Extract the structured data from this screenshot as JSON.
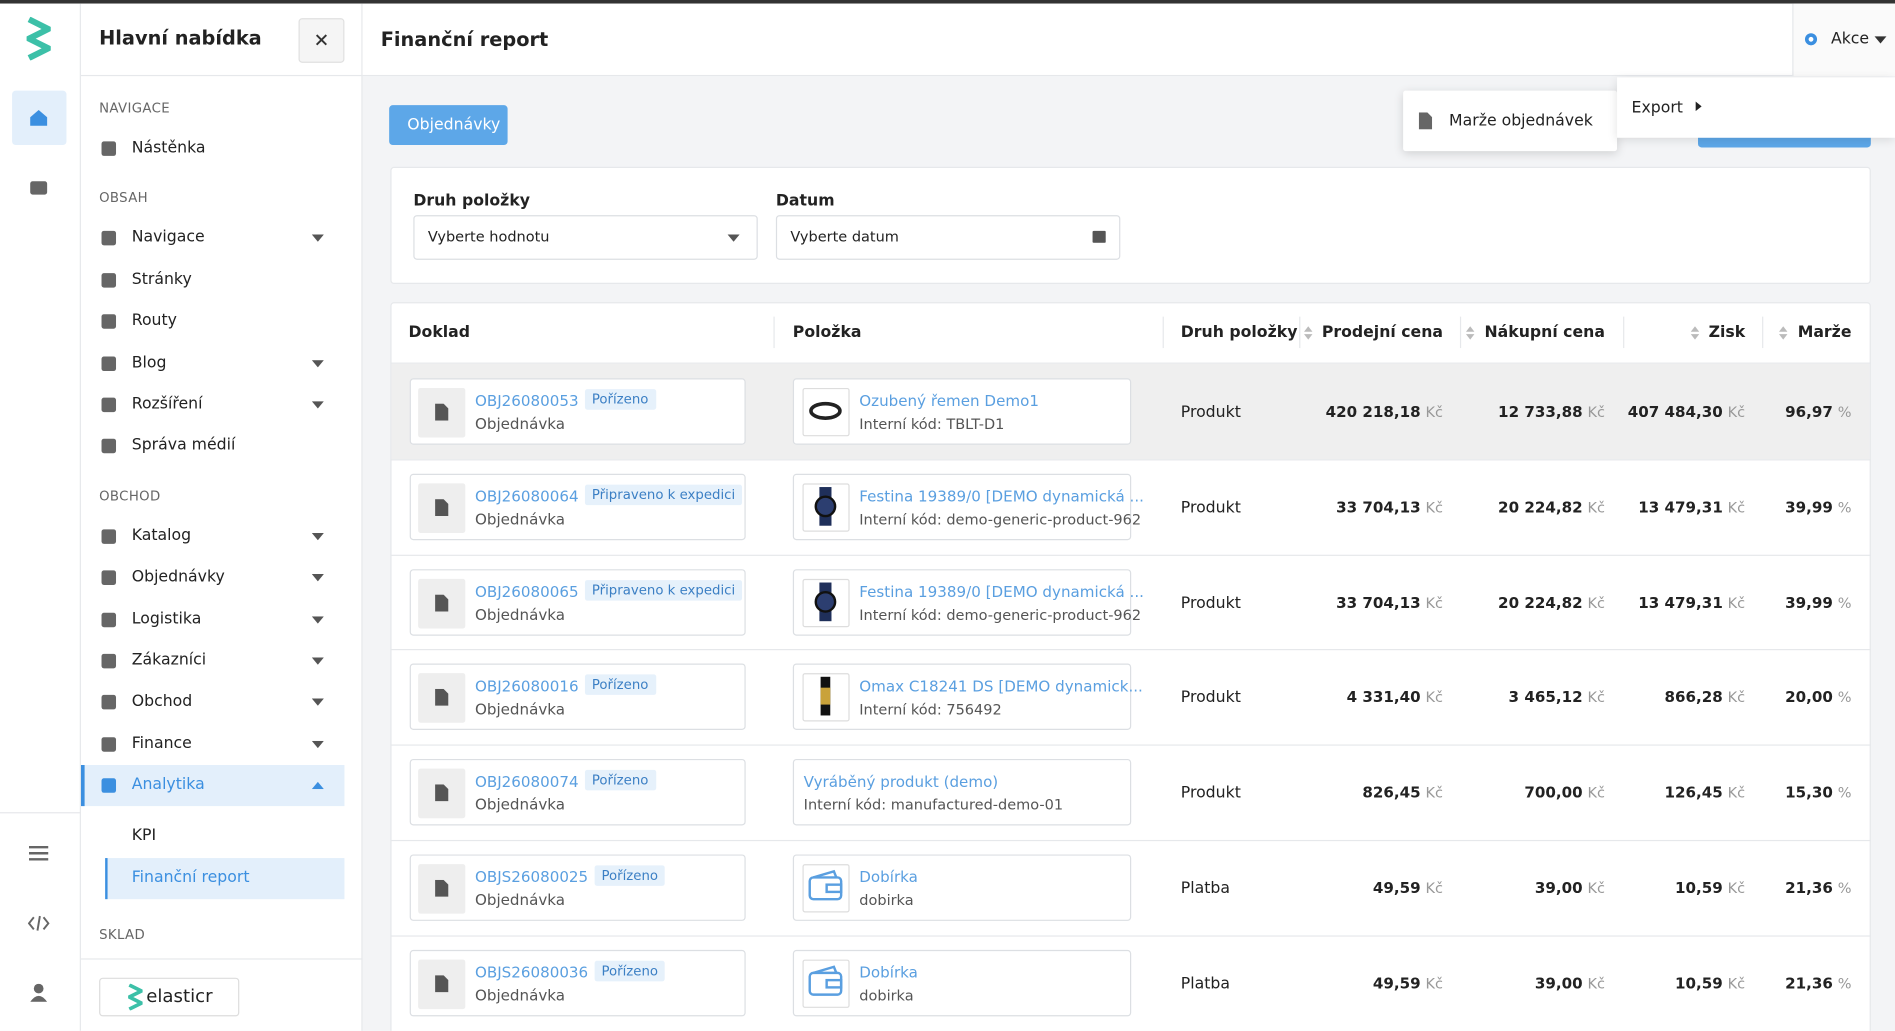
{
  "sidebar": {
    "title": "Hlavní nabídka",
    "sections": [
      {
        "label": "NAVIGACE",
        "items": [
          {
            "label": "Nástěnka"
          }
        ]
      },
      {
        "label": "OBSAH",
        "items": [
          {
            "label": "Navigace",
            "expand": true
          },
          {
            "label": "Stránky"
          },
          {
            "label": "Routy"
          },
          {
            "label": "Blog",
            "expand": true
          },
          {
            "label": "Rozšíření",
            "expand": true
          },
          {
            "label": "Správa médií"
          }
        ]
      },
      {
        "label": "OBCHOD",
        "items": [
          {
            "label": "Katalog",
            "expand": true
          },
          {
            "label": "Objednávky",
            "expand": true
          },
          {
            "label": "Logistika",
            "expand": true
          },
          {
            "label": "Zákazníci",
            "expand": true
          },
          {
            "label": "Obchod",
            "expand": true
          },
          {
            "label": "Finance",
            "expand": true
          },
          {
            "label": "Analytika",
            "expand": true,
            "active": true,
            "children": [
              {
                "label": "KPI"
              },
              {
                "label": "Finanční report",
                "active": true
              }
            ]
          }
        ]
      },
      {
        "label": "SKLAD",
        "items": []
      }
    ],
    "logo": "elasticr"
  },
  "header": {
    "title": "Finanční report",
    "action": "Akce"
  },
  "menu": {
    "item": "Marže objednávek",
    "submenu": "Export"
  },
  "tab": "Objednávky",
  "filters": [
    {
      "label": "Druh položky",
      "placeholder": "Vyberte hodnotu"
    },
    {
      "label": "Datum",
      "placeholder": "Vyberte datum"
    }
  ],
  "table": {
    "columns": [
      "Doklad",
      "Položka",
      "Druh položky",
      "Prodejní cena",
      "Nákupní cena",
      "Zisk",
      "Marže"
    ],
    "currency": "Kč",
    "percent": "%",
    "rows": [
      {
        "doc": "OBJ26080053",
        "status": "Pořízeno",
        "doc_type": "Objednávka",
        "item": "Ozubený řemen Demo1",
        "code": "Interní kód: TBLT-D1",
        "thumb": "belt",
        "kind": "Produkt",
        "sale": "420 218,18",
        "cost": "12 733,88",
        "profit": "407 484,30",
        "margin": "96,97"
      },
      {
        "doc": "OBJ26080064",
        "status": "Připraveno k expedici",
        "doc_type": "Objednávka",
        "item": "Festina 19389/0 [DEMO dynamická ...",
        "code": "Interní kód: demo-generic-product-962",
        "thumb": "watch",
        "kind": "Produkt",
        "sale": "33 704,13",
        "cost": "20 224,82",
        "profit": "13 479,31",
        "margin": "39,99"
      },
      {
        "doc": "OBJ26080065",
        "status": "Připraveno k expedici",
        "doc_type": "Objednávka",
        "item": "Festina 19389/0 [DEMO dynamická ...",
        "code": "Interní kód: demo-generic-product-962",
        "thumb": "watch",
        "kind": "Produkt",
        "sale": "33 704,13",
        "cost": "20 224,82",
        "profit": "13 479,31",
        "margin": "39,99"
      },
      {
        "doc": "OBJ26080016",
        "status": "Pořízeno",
        "doc_type": "Objednávka",
        "item": "Omax C18241 DS [DEMO dynamick...",
        "code": "Interní kód: 756492",
        "thumb": "gold",
        "kind": "Produkt",
        "sale": "4 331,40",
        "cost": "3 465,12",
        "profit": "866,28",
        "margin": "20,00"
      },
      {
        "doc": "OBJ26080074",
        "status": "Pořízeno",
        "doc_type": "Objednávka",
        "item": "Vyráběný produkt (demo)",
        "code": "Interní kód: manufactured-demo-01",
        "thumb": "none",
        "kind": "Produkt",
        "sale": "826,45",
        "cost": "700,00",
        "profit": "126,45",
        "margin": "15,30"
      },
      {
        "doc": "OBJS26080025",
        "status": "Pořízeno",
        "doc_type": "Objednávka",
        "item": "Dobírka",
        "code": "dobirka",
        "thumb": "wallet",
        "kind": "Platba",
        "sale": "49,59",
        "cost": "39,00",
        "profit": "10,59",
        "margin": "21,36"
      },
      {
        "doc": "OBJS26080036",
        "status": "Pořízeno",
        "doc_type": "Objednávka",
        "item": "Dobírka",
        "code": "dobirka",
        "thumb": "wallet",
        "kind": "Platba",
        "sale": "49,59",
        "cost": "39,00",
        "profit": "10,59",
        "margin": "21,36"
      }
    ]
  }
}
